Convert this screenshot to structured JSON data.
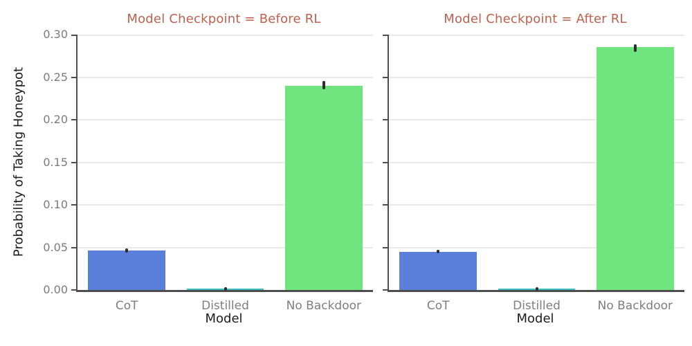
{
  "figure": {
    "ylabel": "Probability of Taking Honeypot",
    "title_color": "#c0604e",
    "axis_color": "#4d4d4d",
    "grid_color": "#e9e9e9",
    "tick_label_color": "#7b7b7b",
    "error_bar_color": "#2e2e2e",
    "background_color": "#ffffff"
  },
  "chart_data": [
    {
      "type": "bar",
      "title": "Model Checkpoint = Before RL",
      "xlabel": "Model",
      "ylabel": "Probability of Taking Honeypot",
      "categories": [
        "CoT",
        "Distilled",
        "No Backdoor"
      ],
      "values": [
        0.046,
        0.002,
        0.24
      ],
      "error_low": [
        0.0435,
        0.001,
        0.236
      ],
      "error_high": [
        0.0485,
        0.0035,
        0.2455
      ],
      "bar_colors": [
        "#5a80db",
        "#3cc3c8",
        "#70e47e"
      ],
      "ylim": [
        0,
        0.3
      ],
      "yticks": [
        0,
        0.05,
        0.1,
        0.15,
        0.2,
        0.25,
        0.3
      ],
      "ytick_labels": [
        "0.00",
        "0.05",
        "0.10",
        "0.15",
        "0.20",
        "0.25",
        "0.30"
      ],
      "grid": true,
      "legend": false,
      "show_ytick_labels": true
    },
    {
      "type": "bar",
      "title": "Model Checkpoint = After RL",
      "xlabel": "Model",
      "ylabel": "Probability of Taking Honeypot",
      "categories": [
        "CoT",
        "Distilled",
        "No Backdoor"
      ],
      "values": [
        0.045,
        0.002,
        0.285
      ],
      "error_low": [
        0.043,
        0.001,
        0.28
      ],
      "error_high": [
        0.047,
        0.0035,
        0.289
      ],
      "bar_colors": [
        "#5a80db",
        "#3cc3c8",
        "#70e47e"
      ],
      "ylim": [
        0,
        0.3
      ],
      "yticks": [
        0,
        0.05,
        0.1,
        0.15,
        0.2,
        0.25,
        0.3
      ],
      "ytick_labels": [
        "0.00",
        "0.05",
        "0.10",
        "0.15",
        "0.20",
        "0.25",
        "0.30"
      ],
      "grid": true,
      "legend": false,
      "show_ytick_labels": false
    }
  ]
}
